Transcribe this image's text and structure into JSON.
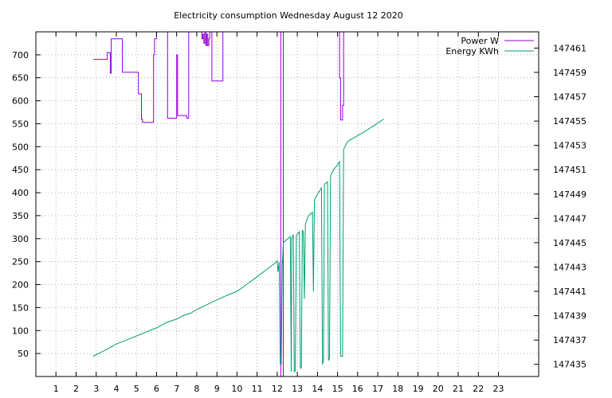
{
  "chart_data": {
    "type": "line",
    "title": "Electricity consumption Wednesday August 12 2020",
    "xlabel": "",
    "ylabel": "",
    "y2label": "",
    "grid": true,
    "legend_position": "top-right",
    "xlim": [
      0,
      25
    ],
    "ylim": [
      0,
      750
    ],
    "y2lim": [
      147434.0,
      147462.333
    ],
    "x_ticks": [
      1,
      2,
      3,
      4,
      5,
      6,
      7,
      8,
      9,
      10,
      11,
      12,
      13,
      14,
      15,
      16,
      17,
      18,
      19,
      20,
      21,
      22,
      23
    ],
    "y_ticks": [
      50,
      100,
      150,
      200,
      250,
      300,
      350,
      400,
      450,
      500,
      550,
      600,
      650,
      700
    ],
    "y2_ticks": [
      147435,
      147437,
      147439,
      147441,
      147443,
      147445,
      147447,
      147449,
      147451,
      147453,
      147455,
      147457,
      147459,
      147461
    ],
    "series": [
      {
        "name": "Power W",
        "axis": "y1",
        "color": "#9400d3",
        "points": [
          [
            2.85,
            690
          ],
          [
            3.55,
            690
          ],
          [
            3.55,
            705
          ],
          [
            3.7,
            705
          ],
          [
            3.7,
            660
          ],
          [
            3.75,
            660
          ],
          [
            3.75,
            735
          ],
          [
            4.3,
            735
          ],
          [
            4.3,
            662
          ],
          [
            5.1,
            662
          ],
          [
            5.1,
            615
          ],
          [
            5.25,
            615
          ],
          [
            5.25,
            560
          ],
          [
            5.3,
            560
          ],
          [
            5.3,
            553
          ],
          [
            5.85,
            553
          ],
          [
            5.85,
            700
          ],
          [
            5.9,
            700
          ],
          [
            5.9,
            735
          ],
          [
            6.0,
            735
          ],
          [
            6.0,
            1200
          ],
          [
            6.55,
            1200
          ],
          [
            6.55,
            562
          ],
          [
            7.0,
            562
          ],
          [
            7.0,
            700
          ],
          [
            7.05,
            700
          ],
          [
            7.05,
            568
          ],
          [
            7.5,
            568
          ],
          [
            7.5,
            562
          ],
          [
            7.6,
            562
          ],
          [
            7.6,
            1200
          ],
          [
            8.25,
            1200
          ],
          [
            8.25,
            735
          ],
          [
            8.3,
            735
          ],
          [
            8.3,
            745
          ],
          [
            8.35,
            745
          ],
          [
            8.35,
            725
          ],
          [
            8.4,
            725
          ],
          [
            8.4,
            748
          ],
          [
            8.45,
            748
          ],
          [
            8.45,
            720
          ],
          [
            8.5,
            720
          ],
          [
            8.5,
            745
          ],
          [
            8.55,
            745
          ],
          [
            8.55,
            720
          ],
          [
            8.6,
            720
          ],
          [
            8.6,
            735
          ],
          [
            8.65,
            735
          ],
          [
            8.65,
            1200
          ],
          [
            8.75,
            1200
          ],
          [
            8.75,
            643
          ],
          [
            9.3,
            643
          ],
          [
            9.3,
            1200
          ],
          [
            12.18,
            1200
          ],
          [
            12.18,
            0
          ],
          [
            12.3,
            0
          ],
          [
            12.3,
            1200
          ],
          [
            15.1,
            1200
          ],
          [
            15.1,
            650
          ],
          [
            15.15,
            650
          ],
          [
            15.15,
            558
          ],
          [
            15.25,
            558
          ],
          [
            15.25,
            590
          ],
          [
            15.3,
            590
          ],
          [
            15.3,
            1200
          ]
        ]
      },
      {
        "name": "Energy KWh",
        "axis": "y2",
        "color": "#009e73",
        "points": [
          [
            2.85,
            147435.67
          ],
          [
            3.6,
            147436.3
          ],
          [
            4.0,
            147436.67
          ],
          [
            4.5,
            147437.0
          ],
          [
            5.0,
            147437.33
          ],
          [
            5.5,
            147437.67
          ],
          [
            6.0,
            147438.0
          ],
          [
            6.5,
            147438.45
          ],
          [
            7.0,
            147438.72
          ],
          [
            7.3,
            147439.0
          ],
          [
            7.7,
            147439.21
          ],
          [
            8.0,
            147439.5
          ],
          [
            8.5,
            147439.9
          ],
          [
            9.0,
            147440.3
          ],
          [
            9.5,
            147440.67
          ],
          [
            10.0,
            147441.0
          ],
          [
            10.5,
            147441.6
          ],
          [
            11.0,
            147442.2
          ],
          [
            11.5,
            147442.83
          ],
          [
            11.9,
            147443.33
          ],
          [
            12.0,
            147443.5
          ],
          [
            12.05,
            147442.6
          ],
          [
            12.1,
            147443.4
          ],
          [
            12.15,
            147435.0
          ],
          [
            12.2,
            147435.0
          ],
          [
            12.25,
            147443.0
          ],
          [
            12.3,
            147445.0
          ],
          [
            12.5,
            147445.3
          ],
          [
            12.65,
            147445.5
          ],
          [
            12.7,
            147434.4
          ],
          [
            12.72,
            147445.3
          ],
          [
            12.8,
            147445.67
          ],
          [
            12.85,
            147434.4
          ],
          [
            12.9,
            147434.5
          ],
          [
            12.95,
            147445.6
          ],
          [
            13.1,
            147445.9
          ],
          [
            13.15,
            147434.7
          ],
          [
            13.2,
            147434.7
          ],
          [
            13.25,
            147446.0
          ],
          [
            13.3,
            147445.9
          ],
          [
            13.35,
            147440.4
          ],
          [
            13.4,
            147446.5
          ],
          [
            13.5,
            147447.0
          ],
          [
            13.6,
            147447.3
          ],
          [
            13.75,
            147447.5
          ],
          [
            13.8,
            147441.0
          ],
          [
            13.85,
            147448.5
          ],
          [
            14.0,
            147449.0
          ],
          [
            14.2,
            147449.5
          ],
          [
            14.25,
            147435.0
          ],
          [
            14.3,
            147435.3
          ],
          [
            14.35,
            147449.8
          ],
          [
            14.5,
            147450.0
          ],
          [
            14.55,
            147435.3
          ],
          [
            14.6,
            147435.5
          ],
          [
            14.65,
            147450.5
          ],
          [
            14.8,
            147451.0
          ],
          [
            15.0,
            147451.4
          ],
          [
            15.1,
            147451.67
          ],
          [
            15.15,
            147435.67
          ],
          [
            15.25,
            147435.67
          ],
          [
            15.3,
            147452.67
          ],
          [
            15.5,
            147453.33
          ],
          [
            16.0,
            147453.8
          ],
          [
            16.5,
            147454.3
          ],
          [
            17.0,
            147454.83
          ],
          [
            17.3,
            147455.17
          ]
        ]
      }
    ]
  }
}
